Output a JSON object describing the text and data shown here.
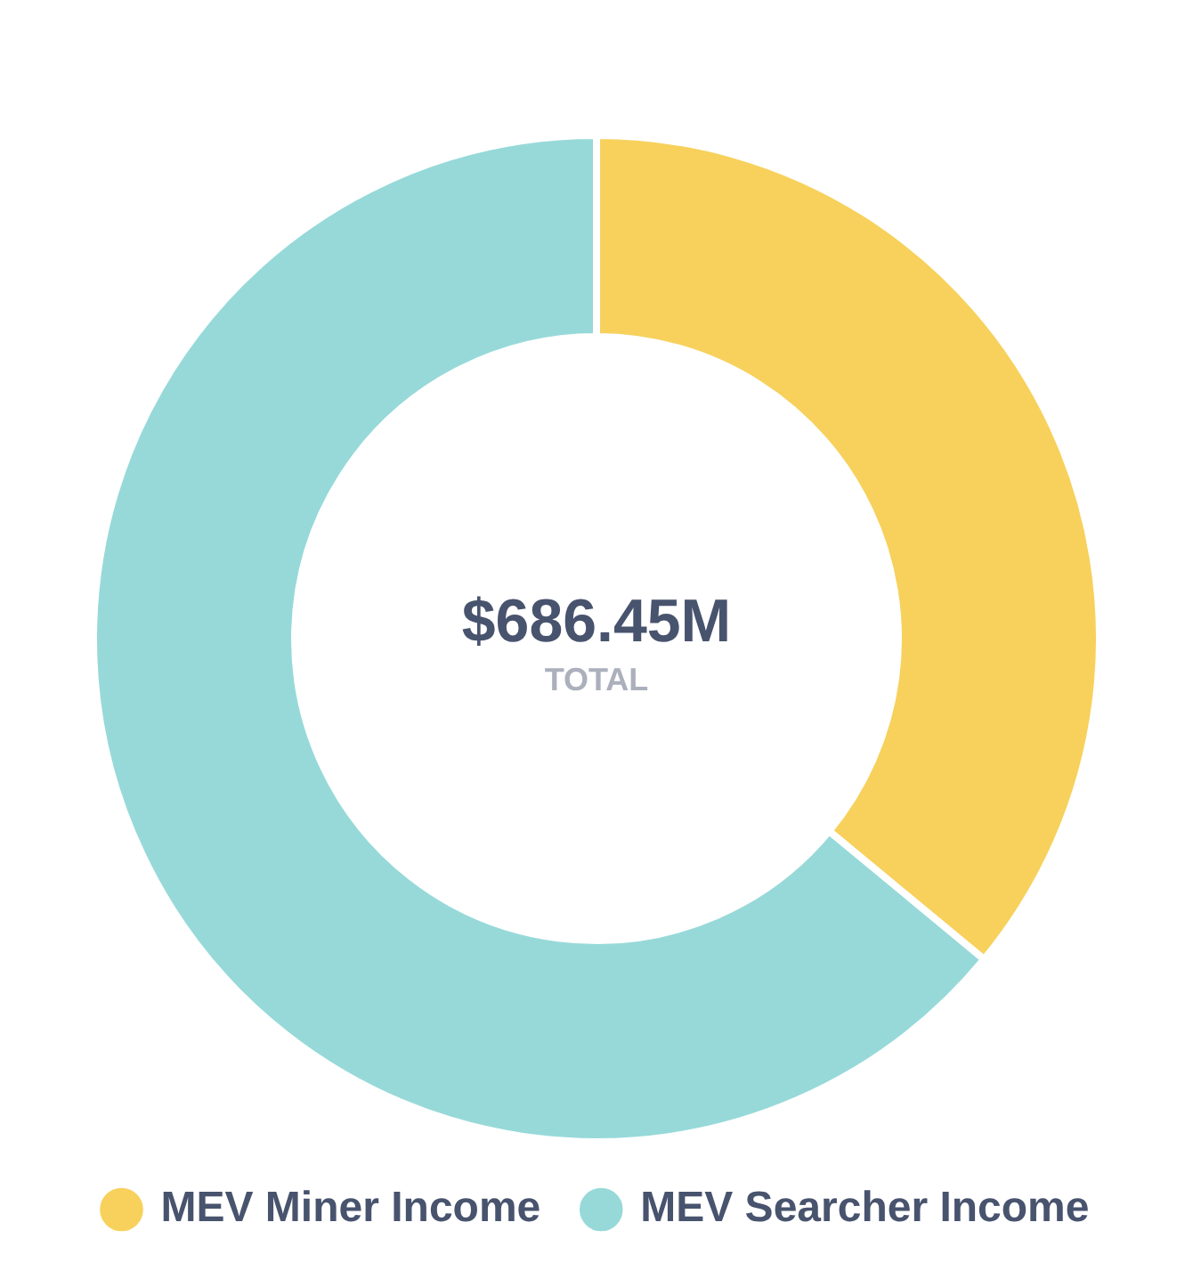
{
  "chart_data": {
    "type": "donut",
    "categories": [
      "MEV Miner Income",
      "MEV Searcher Income"
    ],
    "values": [
      36,
      64
    ],
    "colors": [
      "#f7d15c",
      "#97d9d9"
    ],
    "annotations": [
      "$686.45M",
      "TOTAL"
    ],
    "legend": "bottom"
  }
}
